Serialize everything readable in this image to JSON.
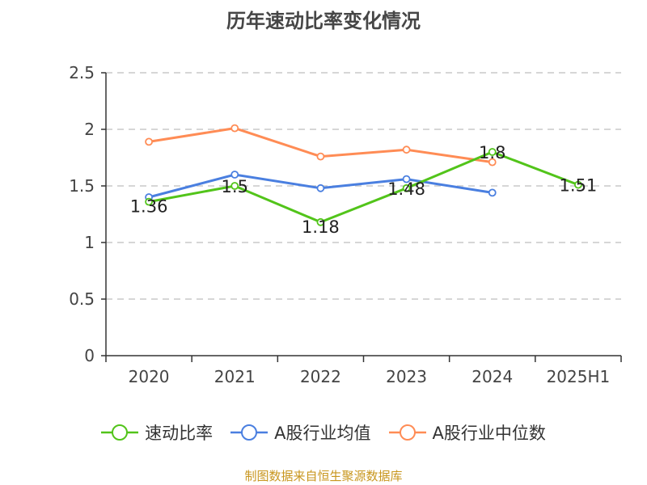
{
  "chart_data": {
    "type": "line",
    "title": "历年速动比率变化情况",
    "categories": [
      "2020",
      "2021",
      "2022",
      "2023",
      "2024",
      "2025H1"
    ],
    "ylim": [
      0,
      2.5
    ],
    "yticks": [
      "0",
      "0.5",
      "1",
      "1.5",
      "2",
      "2.5"
    ],
    "grid": true,
    "legend_position": "bottom",
    "series": [
      {
        "name": "速动比率",
        "color": "#52c41a",
        "values": [
          1.36,
          1.5,
          1.18,
          1.48,
          1.8,
          1.51
        ],
        "labels": [
          "1.36",
          "1.5",
          "1.18",
          "1.48",
          "1.8",
          "1.51"
        ]
      },
      {
        "name": "A股行业均值",
        "color": "#4a7fe0",
        "values": [
          1.4,
          1.6,
          1.48,
          1.56,
          1.44,
          null
        ]
      },
      {
        "name": "A股行业中位数",
        "color": "#ff8c55",
        "values": [
          1.89,
          2.01,
          1.76,
          1.82,
          1.71,
          null
        ]
      }
    ]
  },
  "source": "制图数据来自恒生聚源数据库"
}
